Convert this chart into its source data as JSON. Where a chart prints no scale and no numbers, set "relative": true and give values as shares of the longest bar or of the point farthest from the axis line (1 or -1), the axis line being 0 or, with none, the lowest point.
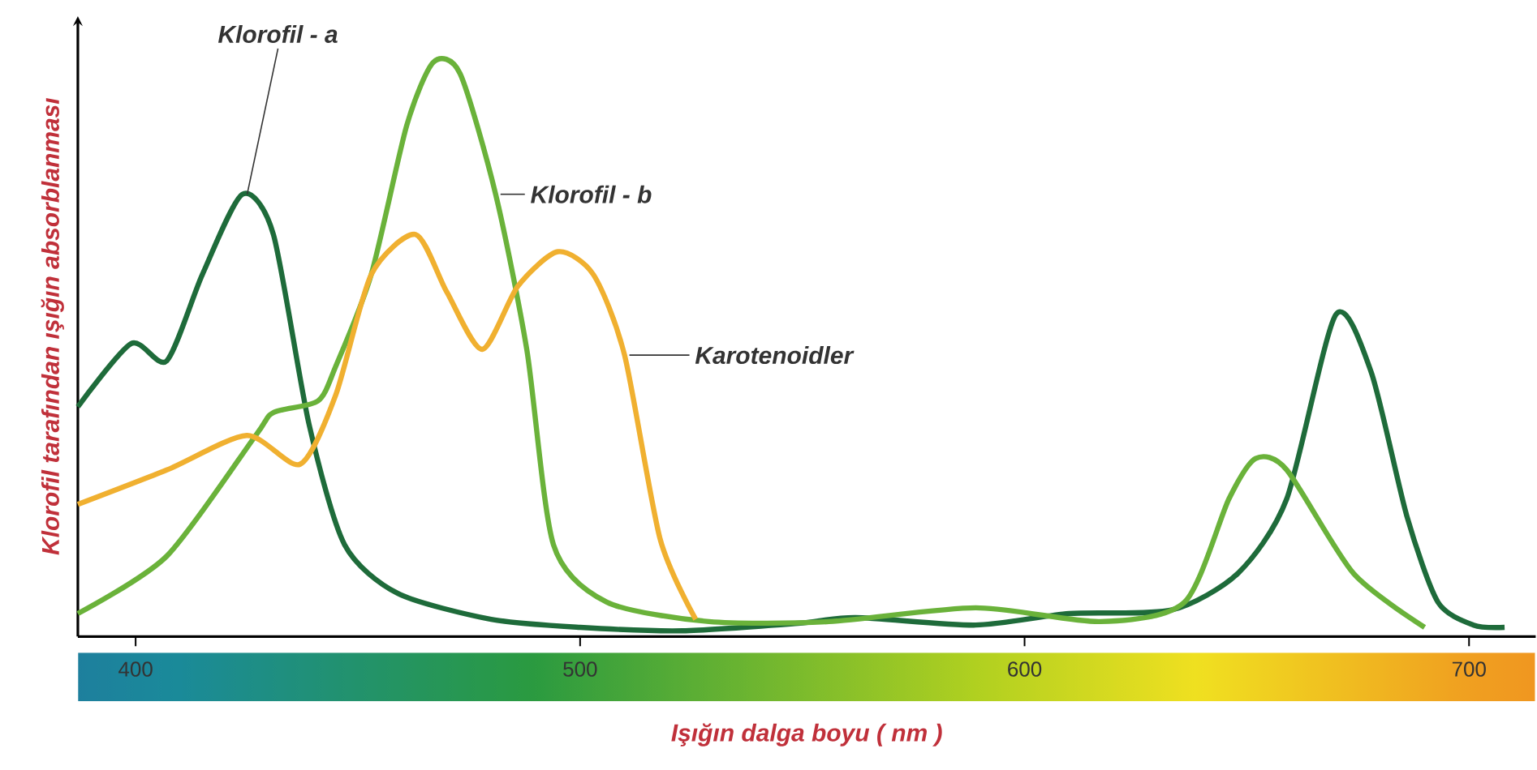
{
  "chart_data": {
    "type": "line",
    "relative": true,
    "xlabel": "Işığın dalga boyu ( nm )",
    "ylabel": "Klorofil tarafından ışığın absorblanması",
    "xlim": [
      387,
      715
    ],
    "xticks": [
      400,
      500,
      600,
      700
    ],
    "series": [
      {
        "name": "Klorofil - a",
        "color": "#1e6b3a",
        "x": [
          387,
          399,
          407,
          415,
          424,
          431,
          439,
          447,
          459,
          480,
          500,
          523,
          549,
          562,
          589,
          610,
          633,
          648,
          659,
          670,
          678,
          686,
          693,
          701,
          708
        ],
        "values": [
          0.4,
          0.51,
          0.48,
          0.63,
          0.77,
          0.7,
          0.37,
          0.16,
          0.075,
          0.03,
          0.016,
          0.01,
          0.023,
          0.033,
          0.02,
          0.04,
          0.046,
          0.11,
          0.24,
          0.56,
          0.46,
          0.21,
          0.06,
          0.02,
          0.016
        ]
      },
      {
        "name": "Klorofil - b",
        "color": "#6ab23a",
        "x": [
          387,
          407,
          427,
          431,
          441,
          445,
          453,
          461,
          467,
          473,
          481,
          488,
          494,
          506,
          529,
          556,
          589,
          617,
          636,
          646,
          652,
          659,
          674,
          690
        ],
        "values": [
          0.04,
          0.14,
          0.35,
          0.39,
          0.41,
          0.47,
          0.63,
          0.89,
          1.0,
          0.98,
          0.77,
          0.5,
          0.16,
          0.06,
          0.026,
          0.026,
          0.05,
          0.026,
          0.06,
          0.24,
          0.31,
          0.29,
          0.11,
          0.016
        ]
      },
      {
        "name": "Karotenoidler",
        "color": "#f0b030",
        "x": [
          387,
          407,
          425,
          437,
          445,
          453,
          463,
          470,
          478,
          486,
          495,
          503,
          510,
          518,
          526
        ],
        "values": [
          0.23,
          0.29,
          0.35,
          0.3,
          0.42,
          0.63,
          0.7,
          0.6,
          0.5,
          0.61,
          0.67,
          0.63,
          0.49,
          0.17,
          0.03
        ]
      }
    ]
  }
}
